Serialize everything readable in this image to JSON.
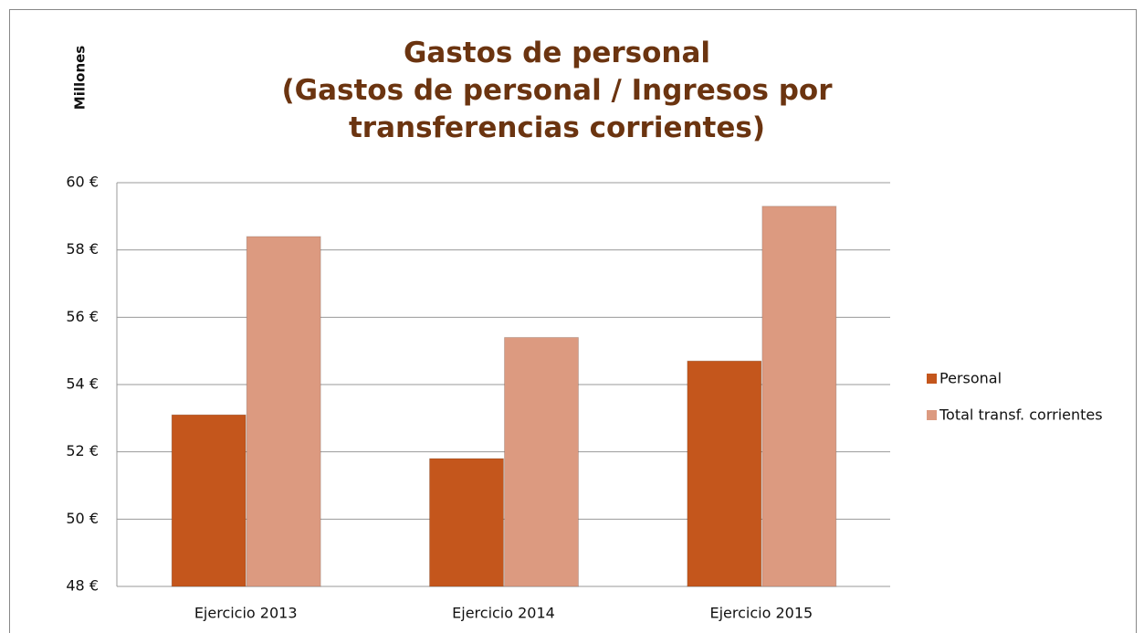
{
  "chart_data": {
    "type": "bar",
    "title": "Gastos de personal",
    "subtitle": "(Gastos de personal / Ingresos por transferencias corrientes)",
    "y_axis_label": "Millones",
    "categories": [
      "Ejercicio 2013",
      "Ejercicio 2014",
      "Ejercicio 2015"
    ],
    "series": [
      {
        "name": "Personal",
        "color": "#c4561c",
        "values": [
          53.1,
          51.8,
          54.7
        ]
      },
      {
        "name": "Total transf. corrientes",
        "color": "#dc9a80",
        "values": [
          58.4,
          55.4,
          59.3
        ]
      }
    ],
    "ylim": [
      48,
      60
    ],
    "yticks": [
      {
        "value": 48,
        "label": "48 €"
      },
      {
        "value": 50,
        "label": "50 €"
      },
      {
        "value": 52,
        "label": "52 €"
      },
      {
        "value": 54,
        "label": "54 €"
      },
      {
        "value": 56,
        "label": "56 €"
      },
      {
        "value": 58,
        "label": "58 €"
      },
      {
        "value": 60,
        "label": "60 €"
      }
    ],
    "grid": true,
    "legend": "right"
  }
}
